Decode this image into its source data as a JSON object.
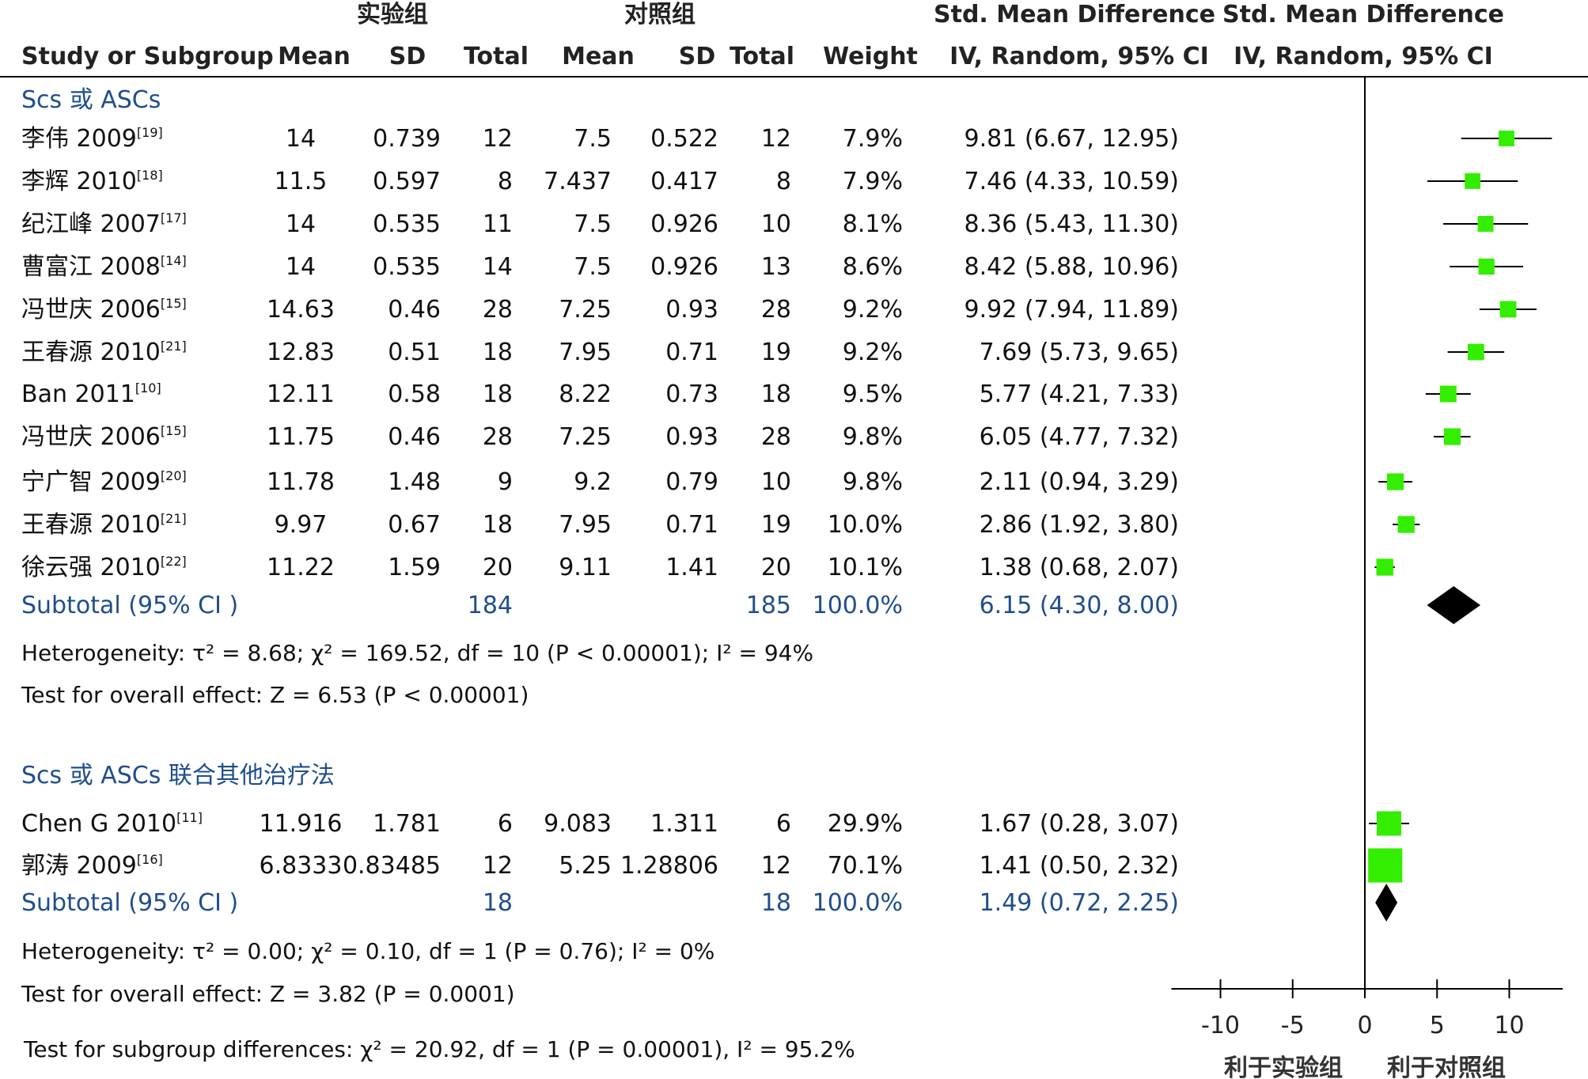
{
  "chart_data": {
    "type": "table",
    "headers": {
      "group_experimental": "实验组",
      "group_control": "对照组",
      "effect_top_left": "Std. Mean Difference",
      "effect_top_right": "Std. Mean Difference",
      "study": "Study or Subgroup",
      "mean1": "Mean",
      "sd1": "SD",
      "total1": "Total",
      "mean2": "Mean",
      "sd2": "SD",
      "total2": "Total",
      "weight": "Weight",
      "ci_left": "IV, Random, 95% CI",
      "ci_right": "IV, Random, 95% CI"
    },
    "subgroups": [
      {
        "title": "Scs 或 ASCs",
        "studies": [
          {
            "name": "李伟 2009",
            "ref": "[19]",
            "mean1": "14",
            "sd1": "0.739",
            "n1": "12",
            "mean2": "7.5",
            "sd2": "0.522",
            "n2": "12",
            "weight": "7.9%",
            "ci_text": "9.81 (6.67, 12.95)",
            "est": 9.81,
            "lo": 6.67,
            "hi": 12.95,
            "w": 7.9
          },
          {
            "name": "李辉 2010",
            "ref": "[18]",
            "mean1": "11.5",
            "sd1": "0.597",
            "n1": "8",
            "mean2": "7.437",
            "sd2": "0.417",
            "n2": "8",
            "weight": "7.9%",
            "ci_text": "7.46 (4.33, 10.59)",
            "est": 7.46,
            "lo": 4.33,
            "hi": 10.59,
            "w": 7.9
          },
          {
            "name": "纪江峰 2007",
            "ref": "[17]",
            "mean1": "14",
            "sd1": "0.535",
            "n1": "11",
            "mean2": "7.5",
            "sd2": "0.926",
            "n2": "10",
            "weight": "8.1%",
            "ci_text": "8.36 (5.43, 11.30)",
            "est": 8.36,
            "lo": 5.43,
            "hi": 11.3,
            "w": 8.1
          },
          {
            "name": "曹富江 2008",
            "ref": "[14]",
            "mean1": "14",
            "sd1": "0.535",
            "n1": "14",
            "mean2": "7.5",
            "sd2": "0.926",
            "n2": "13",
            "weight": "8.6%",
            "ci_text": "8.42 (5.88, 10.96)",
            "est": 8.42,
            "lo": 5.88,
            "hi": 10.96,
            "w": 8.6
          },
          {
            "name": "冯世庆 2006",
            "ref": "[15]",
            "mean1": "14.63",
            "sd1": "0.46",
            "n1": "28",
            "mean2": "7.25",
            "sd2": "0.93",
            "n2": "28",
            "weight": "9.2%",
            "ci_text": "9.92 (7.94, 11.89)",
            "est": 9.92,
            "lo": 7.94,
            "hi": 11.89,
            "w": 9.2
          },
          {
            "name": "王春源 2010",
            "ref": "[21]",
            "mean1": "12.83",
            "sd1": "0.51",
            "n1": "18",
            "mean2": "7.95",
            "sd2": "0.71",
            "n2": "19",
            "weight": "9.2%",
            "ci_text": "7.69 (5.73, 9.65)",
            "est": 7.69,
            "lo": 5.73,
            "hi": 9.65,
            "w": 9.2
          },
          {
            "name": "Ban  2011",
            "ref": "[10]",
            "mean1": "12.11",
            "sd1": "0.58",
            "n1": "18",
            "mean2": "8.22",
            "sd2": "0.73",
            "n2": "18",
            "weight": "9.5%",
            "ci_text": "5.77 (4.21, 7.33)",
            "est": 5.77,
            "lo": 4.21,
            "hi": 7.33,
            "w": 9.5
          },
          {
            "name": "冯世庆 2006",
            "ref": "[15]",
            "mean1": "11.75",
            "sd1": "0.46",
            "n1": "28",
            "mean2": "7.25",
            "sd2": "0.93",
            "n2": "28",
            "weight": "9.8%",
            "ci_text": "6.05 (4.77, 7.32)",
            "est": 6.05,
            "lo": 4.77,
            "hi": 7.32,
            "w": 9.8
          },
          {
            "name": "宁广智 2009",
            "ref": "[20]",
            "mean1": "11.78",
            "sd1": "1.48",
            "n1": "9",
            "mean2": "9.2",
            "sd2": "0.79",
            "n2": "10",
            "weight": "9.8%",
            "ci_text": "2.11 (0.94, 3.29)",
            "est": 2.11,
            "lo": 0.94,
            "hi": 3.29,
            "w": 9.8
          },
          {
            "name": "王春源 2010",
            "ref": "[21]",
            "mean1": "9.97",
            "sd1": "0.67",
            "n1": "18",
            "mean2": "7.95",
            "sd2": "0.71",
            "n2": "19",
            "weight": "10.0%",
            "ci_text": "2.86 (1.92, 3.80)",
            "est": 2.86,
            "lo": 1.92,
            "hi": 3.8,
            "w": 10.0
          },
          {
            "name": "徐云强 2010",
            "ref": "[22]",
            "mean1": "11.22",
            "sd1": "1.59",
            "n1": "20",
            "mean2": "9.11",
            "sd2": "1.41",
            "n2": "20",
            "weight": "10.1%",
            "ci_text": "1.38 (0.68, 2.07)",
            "est": 1.38,
            "lo": 0.68,
            "hi": 2.07,
            "w": 10.1
          }
        ],
        "subtotal": {
          "label": "Subtotal (95% CI )",
          "n1": "184",
          "n2": "185",
          "weight": "100.0%",
          "ci_text": "6.15 (4.30, 8.00)",
          "est": 6.15,
          "lo": 4.3,
          "hi": 8.0
        },
        "heterogeneity": "Heterogeneity:  τ² = 8.68;  χ² = 169.52, df = 10 (P < 0.00001); I² = 94%",
        "overall": "Test for overall effect: Z = 6.53 (P < 0.00001)"
      },
      {
        "title": "Scs 或 ASCs 联合其他治疗法",
        "studies": [
          {
            "name": "Chen G 2010",
            "ref": "[11]",
            "mean1": "11.916",
            "sd1": "1.781",
            "n1": "6",
            "mean2": "9.083",
            "sd2": "1.311",
            "n2": "6",
            "weight": "29.9%",
            "ci_text": "1.67 (0.28, 3.07)",
            "est": 1.67,
            "lo": 0.28,
            "hi": 3.07,
            "w": 29.9
          },
          {
            "name": "郭涛 2009",
            "ref": "[16]",
            "mean1": "6.8333",
            "sd1": "0.83485",
            "n1": "12",
            "mean2": "5.25",
            "sd2": "1.28806",
            "n2": "12",
            "weight": "70.1%",
            "ci_text": "1.41 (0.50, 2.32)",
            "est": 1.41,
            "lo": 0.5,
            "hi": 2.32,
            "w": 70.1
          }
        ],
        "subtotal": {
          "label": "Subtotal (95% CI )",
          "n1": "18",
          "n2": "18",
          "weight": "100.0%",
          "ci_text": "1.49 (0.72, 2.25)",
          "est": 1.49,
          "lo": 0.72,
          "hi": 2.25
        },
        "heterogeneity": "Heterogeneity:  τ² = 0.00;  χ² = 0.10, df = 1 (P = 0.76); I² = 0%",
        "overall": "Test for overall effect: Z = 3.82 (P = 0.0001)"
      }
    ],
    "subgroup_test": "Test for subgroup differences:  χ² = 20.92, df = 1 (P = 0.00001), I² = 95.2%",
    "axis": {
      "xlim": [
        -14,
        14
      ],
      "ticks": [
        -10,
        -5,
        0,
        5,
        10
      ],
      "tick_labels": [
        "-10",
        "-5",
        "0",
        "5",
        "10"
      ],
      "label_left": "利于实验组",
      "label_right": "利于对照组"
    },
    "colors": {
      "study_marker": "#33ee00",
      "diamond": "#000000",
      "subgroup_text": "#1f4e8c",
      "line": "#000000"
    }
  }
}
